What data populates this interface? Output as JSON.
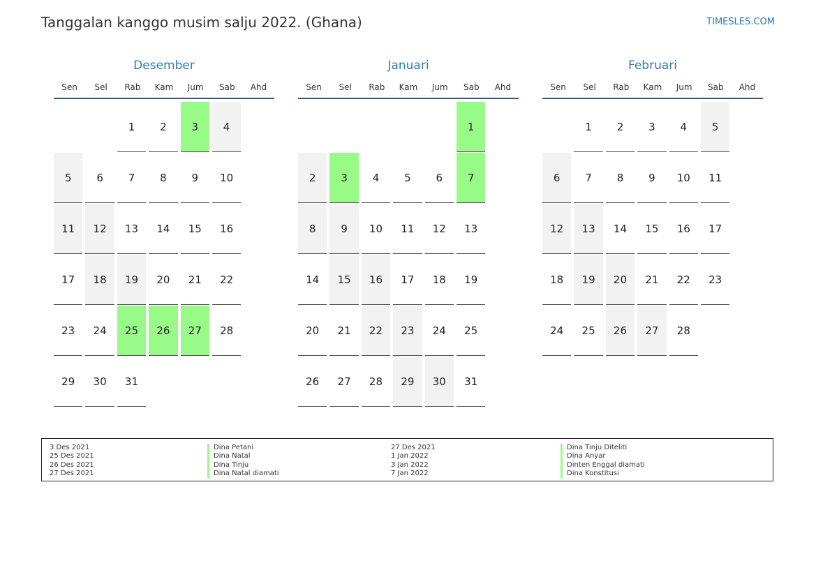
{
  "header": {
    "title": "Tanggalan kanggo musim salju 2022. (Ghana)",
    "site": "TIMESLES.COM"
  },
  "weekdays": [
    "Sen",
    "Sel",
    "Rab",
    "Kam",
    "Jum",
    "Sab",
    "Ahd"
  ],
  "months": [
    {
      "name": "Desember",
      "first_weekday_offset": 2,
      "days": 31,
      "holidays": [
        3,
        25,
        26,
        27
      ]
    },
    {
      "name": "Januari",
      "first_weekday_offset": 5,
      "days": 31,
      "holidays": [
        1,
        3,
        7
      ]
    },
    {
      "name": "Februari",
      "first_weekday_offset": 1,
      "days": 28,
      "holidays": []
    }
  ],
  "legend": [
    {
      "date": "3 Des 2021",
      "name": "Dina Petani"
    },
    {
      "date": "25 Des 2021",
      "name": "Dina Natal"
    },
    {
      "date": "26 Des 2021",
      "name": "Dina Tinju"
    },
    {
      "date": "27 Des 2021",
      "name": "Dina Natal diamati"
    },
    {
      "date": "27 Des 2021",
      "name": "Dina Tinju Diteliti"
    },
    {
      "date": "1 Jan 2022",
      "name": "Dina Anyar"
    },
    {
      "date": "3 Jan 2022",
      "name": "Dinten Enggal diamati"
    },
    {
      "date": "7 Jan 2022",
      "name": "Dina Konstitusi"
    }
  ],
  "colors": {
    "holiday": "#98fb88",
    "weekend": "#f2f2f2",
    "month_title": "#2f7ab8"
  }
}
